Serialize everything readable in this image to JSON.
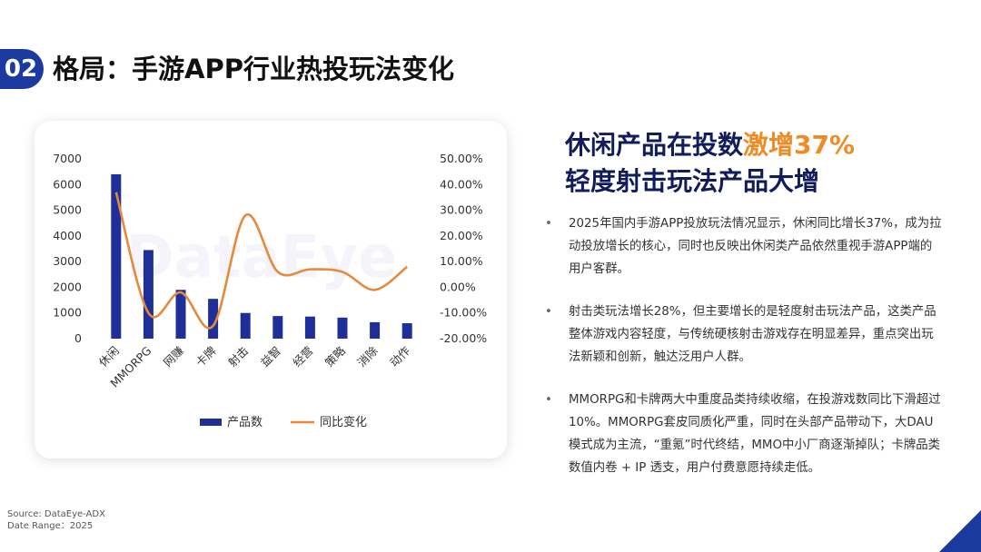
{
  "section": {
    "number": "02",
    "title": "格局：手游APP行业热投玩法变化"
  },
  "headline": {
    "line1_prefix": "休闲产品在投数",
    "line1_highlight": "激增37%",
    "line2": "轻度射击玩法产品大增"
  },
  "bullets": [
    "2025年国内手游APP投放玩法情况显示，休闲同比增长37%，成为拉动投放增长的核心，同时也反映出休闲类产品依然重视手游APP端的用户客群。",
    "射击类玩法增长28%，但主要增长的是轻度射击玩法产品，这类产品整体游戏内容轻度，与传统硬核射击游戏存在明显差异，重点突出玩法新颖和创新，触达泛用户人群。",
    "MMORPG和卡牌两大中重度品类持续收缩，在投游戏数同比下滑超过10%。MMORPG套皮同质化严重，同时在头部产品带动下，大DAU模式成为主流，“重氪”时代终结，MMO中小厂商逐渐掉队；卡牌品类数值内卷 + IP 透支，用户付费意愿持续走低。"
  ],
  "source": {
    "line1": "Source: DataEye-ADX",
    "line2": "Date Range：2025"
  },
  "colors": {
    "primary": "#1a3aa0",
    "bar": "#1e2f9a",
    "line": "#e6893a",
    "highlight": "#f08a24",
    "headline": "#101c5c"
  },
  "chart_data": {
    "type": "bar",
    "categories": [
      "休闲",
      "MMORPG",
      "网赚",
      "卡牌",
      "射击",
      "益智",
      "经营",
      "策略",
      "消除",
      "动作"
    ],
    "series": [
      {
        "name": "产品数",
        "type": "bar",
        "axis": "left",
        "values": [
          6400,
          3450,
          1900,
          1550,
          1000,
          880,
          860,
          820,
          640,
          600
        ]
      },
      {
        "name": "同比变化",
        "type": "line",
        "axis": "right",
        "smooth": true,
        "values": [
          37,
          -10,
          -2,
          -15,
          28,
          6,
          7,
          6,
          -1,
          8
        ]
      }
    ],
    "y_left": {
      "min": 0,
      "max": 7000,
      "ticks": [
        "0",
        "1000",
        "2000",
        "3000",
        "4000",
        "5000",
        "6000",
        "7000"
      ]
    },
    "y_right": {
      "min": -20,
      "max": 50,
      "ticks": [
        "-20.00%",
        "-10.00%",
        "0.00%",
        "10.00%",
        "20.00%",
        "30.00%",
        "40.00%",
        "50.00%"
      ]
    },
    "legend": [
      "产品数",
      "同比变化"
    ],
    "legend_position": "bottom",
    "watermark": "DataEye",
    "grid": false
  }
}
